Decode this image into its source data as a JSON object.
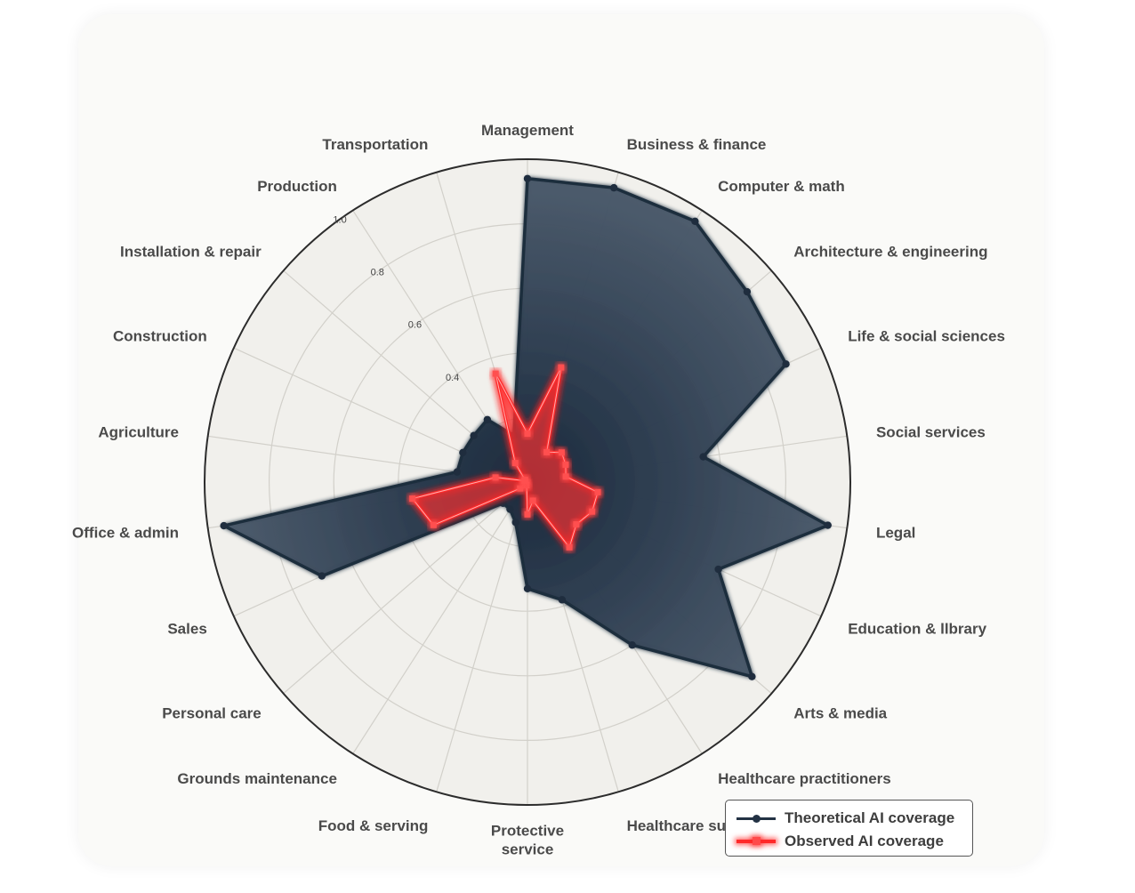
{
  "chart_data": {
    "type": "radar",
    "title": "",
    "categories": [
      "Management",
      "Business & finance",
      "Computer & math",
      "Architecture & engineering",
      "Life & social sciences",
      "Social services",
      "Legal",
      "Education & llbrary",
      "Arts & media",
      "Healthcare practitioners",
      "Healthcare support",
      "Protective\nservice",
      "Food & serving",
      "Grounds maintenance",
      "Personal care",
      "Sales",
      "Office & admin",
      "Agriculture",
      "Construction",
      "Installation & repair",
      "Production",
      "Transportation"
    ],
    "rlim": [
      0,
      1.0
    ],
    "ticks": [
      "0.4",
      "0.6",
      "0.8",
      "1.0"
    ],
    "tick_values": [
      0.4,
      0.6,
      0.8,
      1.0
    ],
    "grid": true,
    "legend_position": "bottom-right",
    "series": [
      {
        "name": "Theoretical AI coverage",
        "color": "#233244",
        "fill": "#2f3f52",
        "values": [
          0.94,
          0.95,
          0.96,
          0.9,
          0.88,
          0.55,
          0.94,
          0.65,
          0.92,
          0.6,
          0.38,
          0.33,
          0.13,
          0.1,
          0.1,
          0.7,
          0.95,
          0.22,
          0.22,
          0.22,
          0.23,
          0.15
        ]
      },
      {
        "name": "Observed AI coverage",
        "color": "#ff2a2a",
        "fill": "#ff3030",
        "values": [
          0.15,
          0.37,
          0.11,
          0.14,
          0.13,
          0.12,
          0.22,
          0.22,
          0.2,
          0.24,
          0.06,
          0.1,
          0.01,
          0.01,
          0.03,
          0.32,
          0.36,
          0.1,
          0.01,
          0.01,
          0.07,
          0.35
        ]
      }
    ]
  },
  "legend": {
    "theoretical": "Theoretical AI coverage",
    "observed": "Observed AI coverage"
  }
}
